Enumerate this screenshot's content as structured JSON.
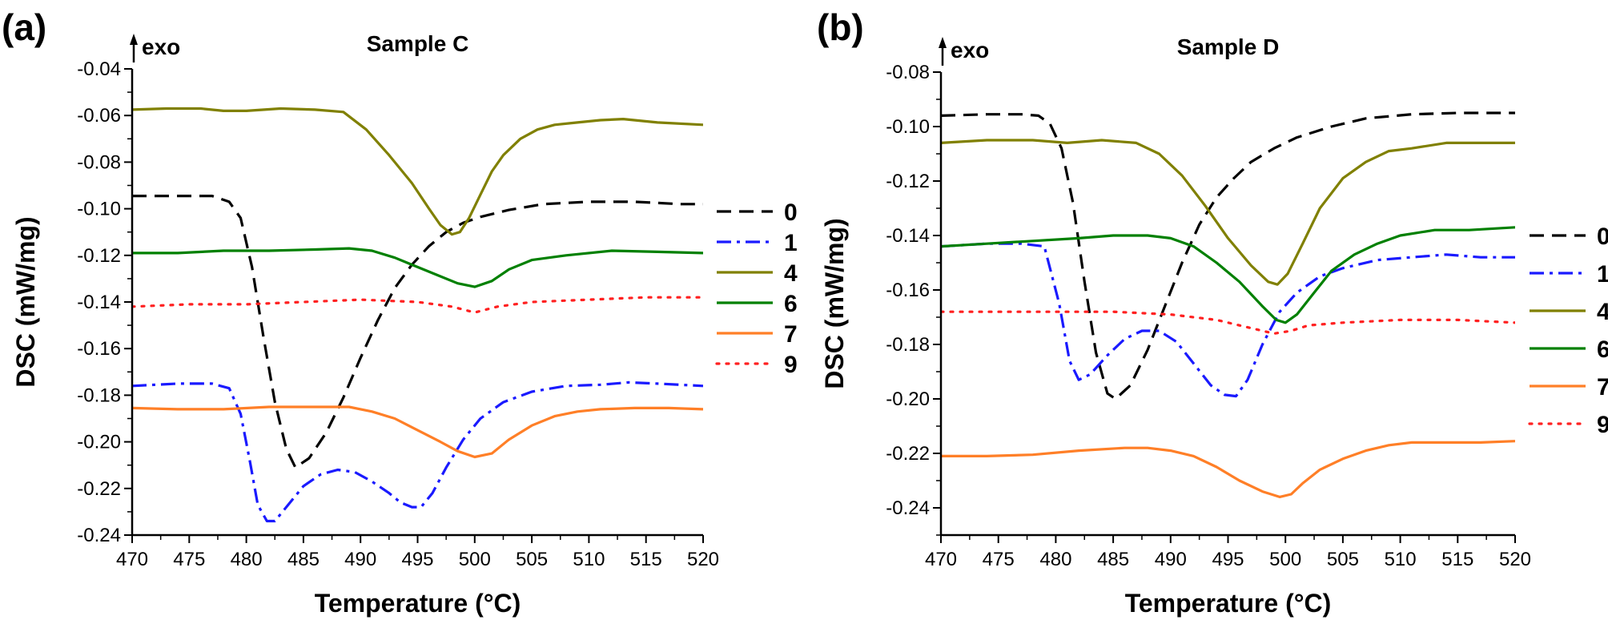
{
  "chart_data": [
    {
      "type": "line",
      "panel_label": "(a)",
      "title": "Sample C",
      "exo_label": "exo",
      "xlabel": "Temperature (°C)",
      "ylabel": "DSC (mW/mg)",
      "xlim": [
        470,
        520
      ],
      "ylim": [
        -0.24,
        -0.04
      ],
      "xticks": [
        470,
        475,
        480,
        485,
        490,
        495,
        500,
        505,
        510,
        515,
        520
      ],
      "xtick_labels": [
        "470",
        "475",
        "480",
        "485",
        "490",
        "495",
        "500",
        "505",
        "510",
        "515",
        "520"
      ],
      "yticks": [
        -0.24,
        -0.22,
        -0.2,
        -0.18,
        -0.16,
        -0.14,
        -0.12,
        -0.1,
        -0.08,
        -0.06,
        -0.04
      ],
      "ytick_labels": [
        "-0.24",
        "-0.22",
        "-0.20",
        "-0.18",
        "-0.16",
        "-0.14",
        "-0.12",
        "-0.10",
        "-0.08",
        "-0.06",
        "-0.04"
      ],
      "legend_position": "right",
      "series": [
        {
          "name": "0",
          "color": "#000000",
          "dash": "dash",
          "x": [
            470,
            474,
            477,
            478.5,
            479.5,
            480.5,
            481.5,
            482.5,
            483.5,
            484.3,
            485.5,
            487,
            488.5,
            490,
            491.5,
            493,
            494.5,
            496,
            497.5,
            499,
            500.5,
            503,
            506,
            510,
            514,
            518,
            520
          ],
          "y": [
            -0.0945,
            -0.0945,
            -0.0945,
            -0.097,
            -0.104,
            -0.125,
            -0.155,
            -0.183,
            -0.203,
            -0.211,
            -0.207,
            -0.196,
            -0.181,
            -0.164,
            -0.148,
            -0.134,
            -0.124,
            -0.116,
            -0.11,
            -0.106,
            -0.1035,
            -0.1005,
            -0.098,
            -0.097,
            -0.097,
            -0.098,
            -0.098
          ]
        },
        {
          "name": "1",
          "color": "#1a1aff",
          "dash": "dashdot",
          "x": [
            470,
            474,
            477,
            478.5,
            479.5,
            480.3,
            481,
            481.8,
            482.5,
            483.5,
            485,
            486.5,
            488,
            489.5,
            491,
            492.5,
            493.5,
            494.5,
            495.3,
            496.3,
            497.5,
            499,
            500.5,
            502.5,
            505,
            508,
            511,
            513.5,
            516,
            520
          ],
          "y": [
            -0.176,
            -0.175,
            -0.175,
            -0.177,
            -0.188,
            -0.208,
            -0.227,
            -0.234,
            -0.234,
            -0.228,
            -0.219,
            -0.214,
            -0.212,
            -0.213,
            -0.217,
            -0.222,
            -0.226,
            -0.228,
            -0.228,
            -0.222,
            -0.211,
            -0.199,
            -0.19,
            -0.183,
            -0.1785,
            -0.176,
            -0.1755,
            -0.1745,
            -0.175,
            -0.176
          ]
        },
        {
          "name": "4",
          "color": "#808000",
          "dash": "solid",
          "x": [
            470,
            473,
            476,
            478,
            480,
            483,
            486,
            488.5,
            490.5,
            492.5,
            494.5,
            496,
            497,
            498,
            498.7,
            499.5,
            500.5,
            501.5,
            502.5,
            504,
            505.5,
            507,
            509,
            511,
            513,
            516,
            520
          ],
          "y": [
            -0.0575,
            -0.057,
            -0.057,
            -0.058,
            -0.058,
            -0.057,
            -0.0575,
            -0.0585,
            -0.066,
            -0.077,
            -0.089,
            -0.1,
            -0.107,
            -0.111,
            -0.11,
            -0.104,
            -0.094,
            -0.084,
            -0.077,
            -0.07,
            -0.066,
            -0.064,
            -0.063,
            -0.062,
            -0.0615,
            -0.063,
            -0.064
          ]
        },
        {
          "name": "6",
          "color": "#008000",
          "dash": "solid",
          "x": [
            470,
            474,
            478,
            482,
            486,
            489,
            491,
            493,
            495,
            497,
            498.5,
            500,
            501.5,
            503,
            505,
            508,
            512,
            516,
            520
          ],
          "y": [
            -0.119,
            -0.119,
            -0.118,
            -0.118,
            -0.1175,
            -0.117,
            -0.118,
            -0.121,
            -0.125,
            -0.129,
            -0.132,
            -0.1335,
            -0.131,
            -0.126,
            -0.122,
            -0.12,
            -0.118,
            -0.1185,
            -0.119
          ]
        },
        {
          "name": "7",
          "color": "#ff7f27",
          "dash": "solid",
          "x": [
            470,
            474,
            478,
            482,
            486,
            489,
            491,
            493,
            495,
            497,
            498.5,
            500,
            501.5,
            503,
            505,
            507,
            509,
            511,
            514,
            517,
            520
          ],
          "y": [
            -0.1855,
            -0.186,
            -0.186,
            -0.185,
            -0.185,
            -0.185,
            -0.187,
            -0.19,
            -0.195,
            -0.2,
            -0.204,
            -0.2065,
            -0.205,
            -0.199,
            -0.193,
            -0.189,
            -0.187,
            -0.186,
            -0.1855,
            -0.1855,
            -0.186
          ]
        },
        {
          "name": "9",
          "color": "#ff2020",
          "dash": "dot",
          "x": [
            470,
            475,
            480,
            485,
            490,
            495,
            498,
            500,
            502,
            505,
            510,
            515,
            520
          ],
          "y": [
            -0.142,
            -0.141,
            -0.141,
            -0.14,
            -0.139,
            -0.14,
            -0.142,
            -0.1445,
            -0.142,
            -0.14,
            -0.139,
            -0.138,
            -0.138
          ]
        }
      ]
    },
    {
      "type": "line",
      "panel_label": "(b)",
      "title": "Sample D",
      "exo_label": "exo",
      "xlabel": "Temperature (°C)",
      "ylabel": "DSC (mW/mg)",
      "xlim": [
        470,
        520
      ],
      "ylim": [
        -0.25,
        -0.08
      ],
      "xticks": [
        470,
        475,
        480,
        485,
        490,
        495,
        500,
        505,
        510,
        515,
        520
      ],
      "xtick_labels": [
        "470",
        "475",
        "480",
        "485",
        "490",
        "495",
        "500",
        "505",
        "510",
        "515",
        "520"
      ],
      "yticks": [
        -0.24,
        -0.22,
        -0.2,
        -0.18,
        -0.16,
        -0.14,
        -0.12,
        -0.1,
        -0.08
      ],
      "ytick_labels": [
        "-0.24",
        "-0.22",
        "-0.20",
        "-0.18",
        "-0.16",
        "-0.14",
        "-0.12",
        "-0.10",
        "-0.08"
      ],
      "legend_position": "right",
      "series": [
        {
          "name": "0",
          "color": "#000000",
          "dash": "dash",
          "x": [
            470,
            474,
            477,
            478.5,
            479.5,
            480.5,
            481.5,
            482.5,
            483.5,
            484.5,
            485.2,
            486.5,
            488,
            489.5,
            491,
            492.5,
            494,
            495.5,
            497,
            499,
            501,
            504,
            507,
            511,
            515,
            520
          ],
          "y": [
            -0.096,
            -0.0955,
            -0.0955,
            -0.096,
            -0.099,
            -0.108,
            -0.128,
            -0.157,
            -0.183,
            -0.198,
            -0.2,
            -0.195,
            -0.182,
            -0.166,
            -0.15,
            -0.136,
            -0.126,
            -0.119,
            -0.113,
            -0.108,
            -0.104,
            -0.1,
            -0.097,
            -0.0955,
            -0.095,
            -0.095
          ]
        },
        {
          "name": "1",
          "color": "#1a1aff",
          "dash": "dashdot",
          "x": [
            470,
            474,
            477,
            479,
            480.3,
            481.2,
            482,
            483,
            484.5,
            486,
            487.5,
            489,
            490.5,
            492,
            493.5,
            494.7,
            495.7,
            496.7,
            498,
            499.5,
            501,
            503,
            505,
            508,
            511,
            514,
            517,
            520
          ],
          "y": [
            -0.144,
            -0.143,
            -0.143,
            -0.144,
            -0.165,
            -0.186,
            -0.193,
            -0.191,
            -0.184,
            -0.178,
            -0.175,
            -0.175,
            -0.179,
            -0.187,
            -0.195,
            -0.1985,
            -0.199,
            -0.193,
            -0.18,
            -0.168,
            -0.161,
            -0.155,
            -0.152,
            -0.149,
            -0.148,
            -0.147,
            -0.148,
            -0.148
          ]
        },
        {
          "name": "4",
          "color": "#808000",
          "dash": "solid",
          "x": [
            470,
            474,
            478,
            481,
            484,
            487,
            489,
            491,
            493,
            495,
            497,
            498.5,
            499.3,
            500.2,
            501.5,
            503,
            505,
            507,
            509,
            511,
            514,
            517,
            520
          ],
          "y": [
            -0.106,
            -0.105,
            -0.105,
            -0.106,
            -0.105,
            -0.106,
            -0.11,
            -0.118,
            -0.129,
            -0.141,
            -0.151,
            -0.157,
            -0.158,
            -0.154,
            -0.143,
            -0.13,
            -0.119,
            -0.113,
            -0.109,
            -0.108,
            -0.106,
            -0.106,
            -0.106
          ]
        },
        {
          "name": "6",
          "color": "#008000",
          "dash": "solid",
          "x": [
            470,
            474,
            478,
            482,
            485,
            488,
            490,
            492,
            494,
            496,
            498,
            499.2,
            500,
            501,
            502.5,
            504,
            506,
            508,
            510,
            513,
            516,
            520
          ],
          "y": [
            -0.144,
            -0.143,
            -0.142,
            -0.141,
            -0.14,
            -0.14,
            -0.141,
            -0.144,
            -0.15,
            -0.157,
            -0.166,
            -0.171,
            -0.172,
            -0.169,
            -0.161,
            -0.153,
            -0.147,
            -0.143,
            -0.14,
            -0.138,
            -0.138,
            -0.137
          ]
        },
        {
          "name": "7",
          "color": "#ff7f27",
          "dash": "solid",
          "x": [
            470,
            474,
            478,
            482,
            486,
            488,
            490,
            492,
            494,
            496,
            498,
            499.5,
            500.5,
            501.5,
            503,
            505,
            507,
            509,
            511,
            514,
            517,
            520
          ],
          "y": [
            -0.221,
            -0.221,
            -0.2205,
            -0.219,
            -0.218,
            -0.218,
            -0.219,
            -0.221,
            -0.225,
            -0.23,
            -0.234,
            -0.236,
            -0.235,
            -0.231,
            -0.226,
            -0.222,
            -0.219,
            -0.217,
            -0.216,
            -0.216,
            -0.216,
            -0.2155
          ]
        },
        {
          "name": "9",
          "color": "#ff2020",
          "dash": "dot",
          "x": [
            470,
            475,
            480,
            485,
            490,
            494,
            497,
            499,
            500.5,
            502,
            505,
            510,
            515,
            520
          ],
          "y": [
            -0.168,
            -0.168,
            -0.168,
            -0.168,
            -0.169,
            -0.171,
            -0.174,
            -0.176,
            -0.175,
            -0.173,
            -0.172,
            -0.171,
            -0.171,
            -0.172
          ]
        }
      ]
    }
  ]
}
